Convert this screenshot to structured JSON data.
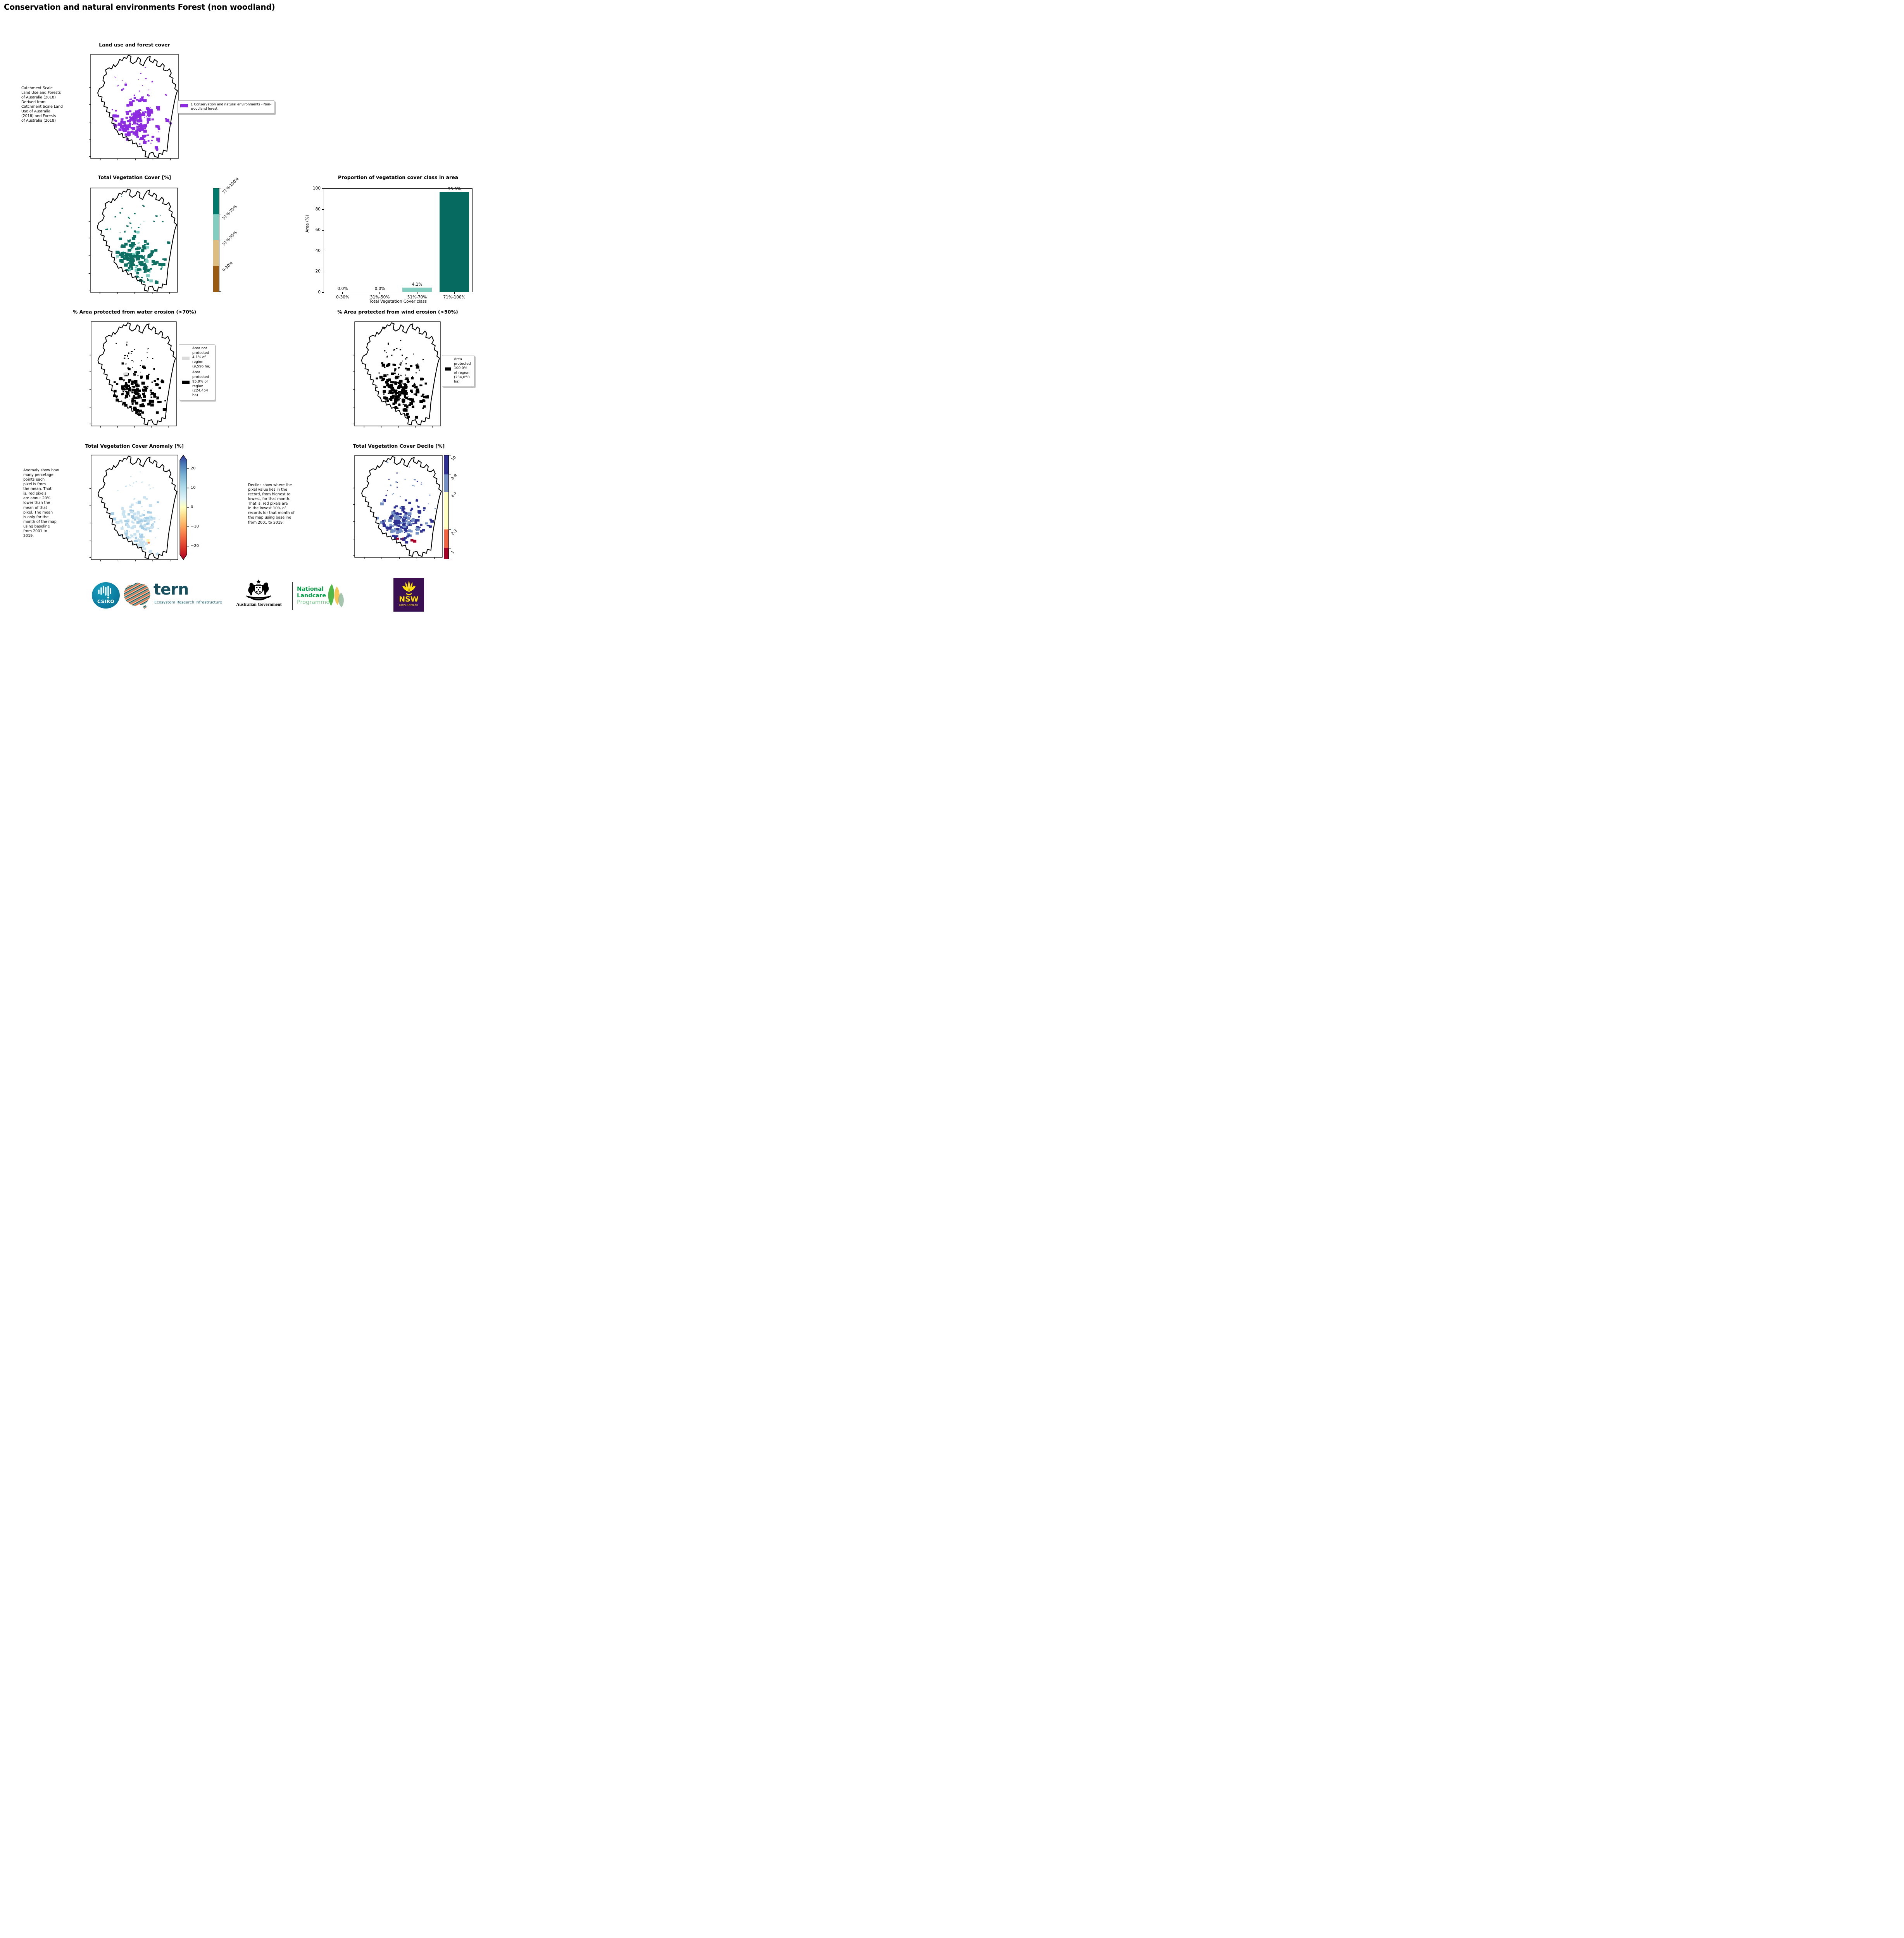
{
  "page_title": "Conservation and natural environments Forest (non woodland)",
  "panels": {
    "land_use": {
      "title": "Land use and forest cover",
      "side_note": " Catchment Scale\nLand Use and Forests\nof Australia (2018)\nDerived from\nCatchment Scale Land\nUse of Australia\n(2018) and Forests\nof Australia (2018)",
      "legend_label": "1 Conservation and natural environments - Non-woodland forest",
      "legend_color": "#8d2be2"
    },
    "tvc": {
      "title": "Total Vegetation Cover [%]",
      "colorbar_labels": [
        "71%-100%",
        "51%-70%",
        "31%-50%",
        "0-30%"
      ],
      "colorbar_colors": [
        "#017a6e",
        "#82cdc0",
        "#ddbe80",
        "#9a5b10"
      ]
    },
    "water": {
      "title": "% Area protected from water erosion (>70%)",
      "legend": [
        {
          "color": "#dcdcdc",
          "label": "Area not protected 4.1% of region (9,596 ha)"
        },
        {
          "color": "#000000",
          "label": "Area protected 95.9% of region (224,454 ha)"
        }
      ]
    },
    "wind": {
      "title": "% Area protected from wind erosion (>50%)",
      "legend": [
        {
          "color": "#000000",
          "label": "Area protected 100.0% of region (234,050 ha)"
        }
      ]
    },
    "anomaly": {
      "title": "Total Vegetation Cover Anomaly [%]",
      "side_note": "Anomaly show how\nmany percetage\npoints each\npixel is from\nthe mean. That\nis, red pixels\nare about 20%\nlower than the\nmean of that\npixel. The mean\nis only for the\nmonth of the map\nusing baseline\nfrom 2001 to\n2019.",
      "colorbar_ticks": [
        "20",
        "10",
        "0",
        "−10",
        "−20"
      ]
    },
    "decile": {
      "title": "Total Vegetation Cover Decile [%]",
      "side_note": "Deciles show where the\npixel value lies in the\nrecord, from highest to\nlowest, for that month.\nThat is, red pixels are\nin the lowest 10% of\nrecords for that month of\nthe map using baseline\nfrom 2001 to 2019.",
      "colorbar_labels": [
        "10",
        "8-9",
        "4-7",
        "2-3",
        "1"
      ],
      "colorbar_colors": [
        "#2e3192",
        "#7490c6",
        "#ffffbf",
        "#f16640",
        "#a50026"
      ]
    }
  },
  "chart_data": {
    "type": "bar",
    "title": "Proportion of vegetation cover class in area",
    "categories": [
      "0-30%",
      "31%-50%",
      "51%-70%",
      "71%-100%"
    ],
    "values": [
      0.0,
      0.0,
      4.1,
      95.9
    ],
    "value_labels": [
      "0.0%",
      "0.0%",
      "4.1%",
      "95.9%"
    ],
    "bar_colors": [
      "#9a5b10",
      "#ddbe80",
      "#82cdc0",
      "#066a60"
    ],
    "xlabel": "Total Vegetation Cover class",
    "ylabel": "Area (%)",
    "ylim": [
      0,
      100
    ],
    "yticks": [
      0,
      20,
      40,
      60,
      80,
      100
    ],
    "grid": false,
    "legend_position": "none"
  },
  "footer": {
    "csiro": "CSIRO",
    "tern": "tern",
    "tern_sub": "Ecosystem Research Infrastructure",
    "aus_gov": "Australian Government",
    "nlp_line1": "National",
    "nlp_line2": "Landcare",
    "nlp_line3": "Programme",
    "nsw": "NSW",
    "nsw_sub": "GOVERNMENT"
  }
}
